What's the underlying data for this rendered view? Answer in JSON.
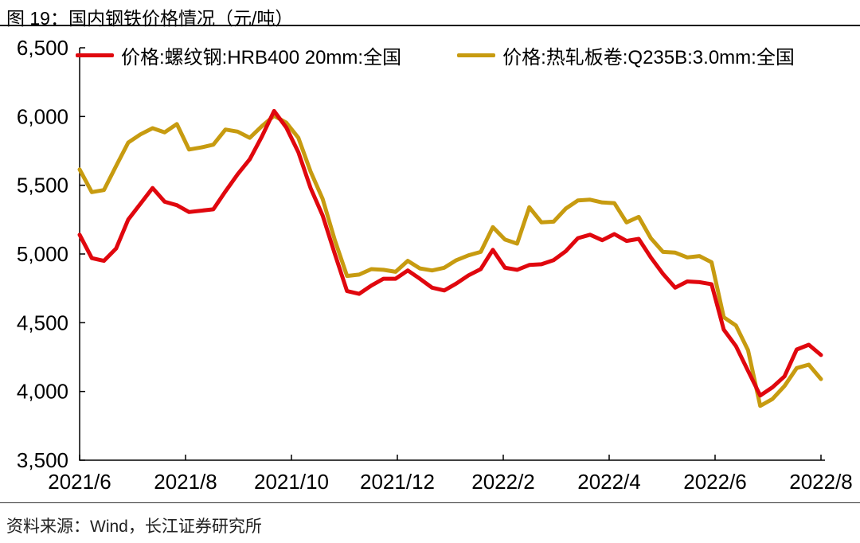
{
  "figure": {
    "title": "图 19：国内钢铁价格情况（元/吨）"
  },
  "footer": {
    "source": "资料来源：Wind，长江证券研究所"
  },
  "chart_data": {
    "type": "line",
    "title": "国内钢铁价格情况（元/吨）",
    "unit": "元/吨",
    "grid": false,
    "legend_position": "top",
    "ylim": [
      3500,
      6500
    ],
    "y_ticks": [
      6500,
      6000,
      5500,
      5000,
      4500,
      4000,
      3500
    ],
    "y_tick_labels": [
      "6,500",
      "6,000",
      "5,500",
      "5,000",
      "4,500",
      "4,000",
      "3,500"
    ],
    "x_tick_labels": [
      "2021/6",
      "2021/8",
      "2021/10",
      "2021/12",
      "2022/2",
      "2022/4",
      "2022/6",
      "2022/8"
    ],
    "x": [
      "2021-06-04",
      "2021-06-11",
      "2021-06-18",
      "2021-06-25",
      "2021-07-02",
      "2021-07-09",
      "2021-07-16",
      "2021-07-23",
      "2021-07-30",
      "2021-08-06",
      "2021-08-13",
      "2021-08-20",
      "2021-08-27",
      "2021-09-03",
      "2021-09-10",
      "2021-09-17",
      "2021-09-24",
      "2021-10-01",
      "2021-10-08",
      "2021-10-15",
      "2021-10-22",
      "2021-10-29",
      "2021-11-05",
      "2021-11-12",
      "2021-11-19",
      "2021-11-26",
      "2021-12-03",
      "2021-12-10",
      "2021-12-17",
      "2021-12-24",
      "2021-12-31",
      "2022-01-07",
      "2022-01-14",
      "2022-01-21",
      "2022-01-28",
      "2022-02-04",
      "2022-02-11",
      "2022-02-18",
      "2022-02-25",
      "2022-03-04",
      "2022-03-11",
      "2022-03-18",
      "2022-03-25",
      "2022-04-01",
      "2022-04-08",
      "2022-04-15",
      "2022-04-22",
      "2022-04-29",
      "2022-05-06",
      "2022-05-13",
      "2022-05-20",
      "2022-05-27",
      "2022-06-03",
      "2022-06-10",
      "2022-06-17",
      "2022-06-24",
      "2022-07-01",
      "2022-07-08",
      "2022-07-15",
      "2022-07-22",
      "2022-07-29",
      "2022-08-05"
    ],
    "series": [
      {
        "name": "价格:螺纹钢:HRB400 20mm:全国",
        "color": "#e0070e",
        "values": [
          5140,
          4970,
          4950,
          5040,
          5250,
          5365,
          5480,
          5380,
          5355,
          5305,
          5315,
          5325,
          5455,
          5580,
          5690,
          5855,
          6040,
          5920,
          5740,
          5480,
          5280,
          5000,
          4730,
          4710,
          4770,
          4820,
          4820,
          4880,
          4820,
          4755,
          4735,
          4785,
          4845,
          4890,
          5030,
          4900,
          4885,
          4920,
          4925,
          4955,
          5020,
          5115,
          5140,
          5100,
          5145,
          5095,
          5110,
          4975,
          4855,
          4755,
          4800,
          4795,
          4780,
          4450,
          4330,
          4150,
          3970,
          4030,
          4110,
          4305,
          4340,
          4265
        ]
      },
      {
        "name": "价格:热轧板卷:Q235B:3.0mm:全国",
        "color": "#c79b10",
        "values": [
          5615,
          5450,
          5465,
          5640,
          5810,
          5870,
          5915,
          5885,
          5945,
          5760,
          5775,
          5795,
          5905,
          5890,
          5845,
          5930,
          6005,
          5955,
          5845,
          5600,
          5400,
          5100,
          4840,
          4850,
          4890,
          4885,
          4870,
          4950,
          4895,
          4880,
          4900,
          4955,
          4990,
          5015,
          5195,
          5105,
          5075,
          5340,
          5230,
          5235,
          5330,
          5390,
          5395,
          5375,
          5370,
          5230,
          5270,
          5115,
          5015,
          5010,
          4975,
          4985,
          4940,
          4540,
          4480,
          4300,
          3895,
          3945,
          4040,
          4170,
          4195,
          4090
        ]
      }
    ]
  }
}
